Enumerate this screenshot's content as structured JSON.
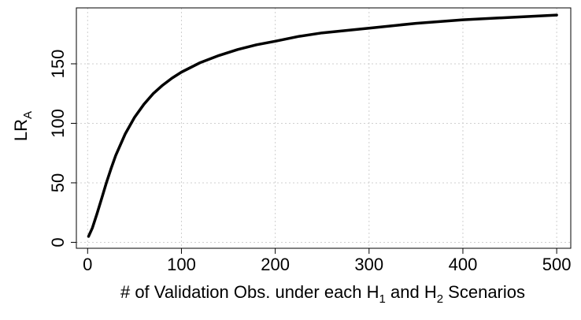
{
  "chart_data": {
    "type": "line",
    "title": "",
    "xlabel": {
      "prefix": "# of Validation Obs. under each H",
      "sub1": "1",
      "middle": " and H",
      "sub2": "2",
      "suffix": " Scenarios"
    },
    "ylabel": {
      "main": "LR",
      "sub": "A"
    },
    "xlim": [
      -12,
      515
    ],
    "ylim": [
      -5,
      197
    ],
    "xticks": [
      0,
      100,
      200,
      300,
      400,
      500
    ],
    "yticks": [
      0,
      50,
      100,
      150
    ],
    "grid": true,
    "legend": "none",
    "series": [
      {
        "color": "#000000",
        "x": [
          1,
          5,
          10,
          15,
          20,
          25,
          30,
          40,
          50,
          60,
          70,
          80,
          90,
          100,
          120,
          140,
          160,
          180,
          200,
          225,
          250,
          275,
          300,
          350,
          400,
          450,
          500
        ],
        "y": [
          5,
          12,
          24,
          37,
          50,
          62,
          73,
          91,
          105,
          116,
          125,
          132,
          138,
          143,
          151,
          157,
          162,
          166,
          169,
          173,
          176,
          178,
          180,
          184,
          187,
          189,
          191
        ]
      }
    ]
  }
}
